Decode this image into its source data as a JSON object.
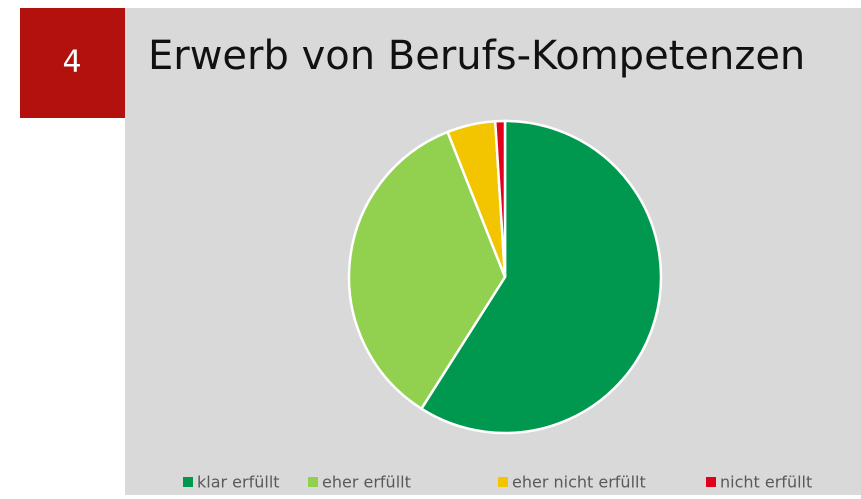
{
  "badge": "4",
  "chart_data": {
    "type": "pie",
    "title": "Erwerb von Berufs-Kompetenzen",
    "categories": [
      "klar erfüllt",
      "eher erfüllt",
      "eher nicht erfüllt",
      "nicht erfüllt"
    ],
    "values": [
      59,
      35,
      5,
      1
    ],
    "colors": [
      "#00984f",
      "#92d050",
      "#f2c500",
      "#e0001b"
    ],
    "legend": "bottom"
  }
}
